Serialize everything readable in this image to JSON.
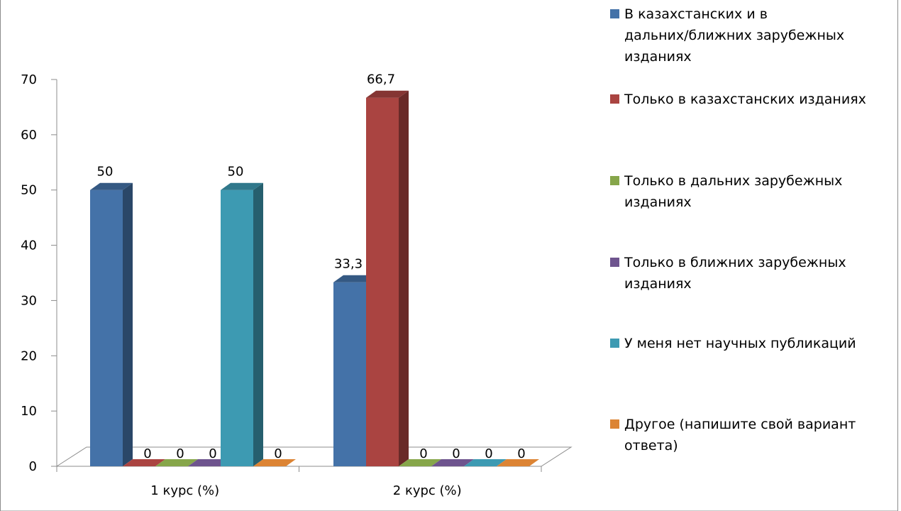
{
  "chart_data": {
    "type": "bar",
    "title": "",
    "categories": [
      "1 курс (%)",
      "2 курс (%)"
    ],
    "series": [
      {
        "name": "В казахстанских и в дальних/ближних зарубежных изданиях",
        "color": "#4472A8",
        "values": [
          50,
          33.3
        ]
      },
      {
        "name": "Только в казахстанских изданиях",
        "color": "#AA4441",
        "values": [
          0,
          66.7
        ]
      },
      {
        "name": "Только в дальних зарубежных изданиях",
        "color": "#86A64A",
        "values": [
          0,
          0
        ]
      },
      {
        "name": "Только в ближних зарубежных изданиях",
        "color": "#6E548E",
        "values": [
          0,
          0
        ]
      },
      {
        "name": "У меня нет научных публикаций",
        "color": "#3D9AB2",
        "values": [
          50,
          0
        ]
      },
      {
        "name": "Другое (напишите свой вариант ответа)",
        "color": "#DC8434",
        "values": [
          0,
          0
        ]
      }
    ],
    "data_labels": [
      [
        "50",
        "33,3"
      ],
      [
        "0",
        "66,7"
      ],
      [
        "0",
        "0"
      ],
      [
        "0",
        "0"
      ],
      [
        "50",
        "0"
      ],
      [
        "0",
        "0"
      ]
    ],
    "ylim": [
      0,
      70
    ],
    "yticks": [
      0,
      10,
      20,
      30,
      40,
      50,
      60,
      70
    ],
    "legend": {
      "position": "right",
      "entries": [
        [
          "В казахстанских и в",
          "дальних/ближних зарубежных",
          "изданиях"
        ],
        [
          "Только в казахстанских изданиях"
        ],
        [
          "Только в дальних зарубежных",
          "изданиях"
        ],
        [
          "Только в ближних зарубежных",
          "изданиях"
        ],
        [
          "У меня нет научных публикаций"
        ],
        [
          "Другое (напишите свой вариант",
          "ответа)"
        ]
      ]
    },
    "three_d": true,
    "grid": false
  }
}
